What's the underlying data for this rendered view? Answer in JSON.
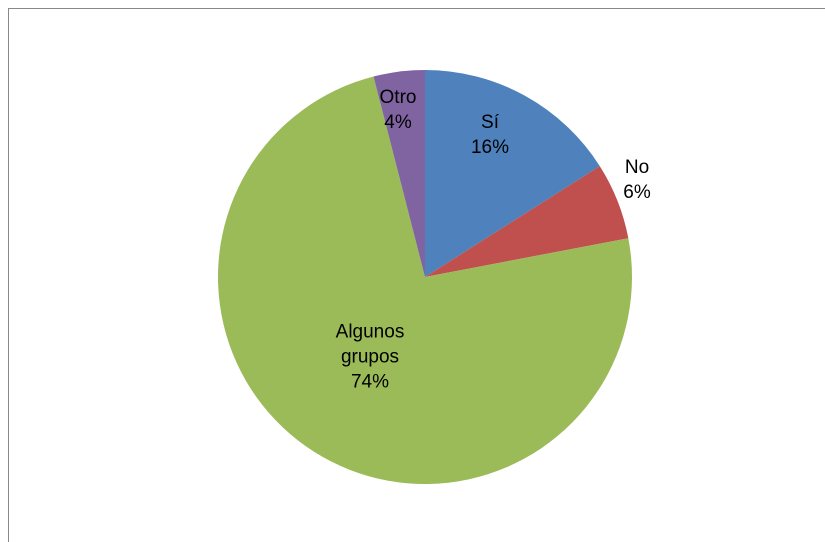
{
  "chart_data": {
    "type": "pie",
    "categories": [
      "Sí",
      "No",
      "Algunos grupos",
      "Otro"
    ],
    "values": [
      16,
      6,
      74,
      4
    ],
    "value_labels": [
      "16%",
      "6%",
      "74%",
      "4%"
    ],
    "colors": [
      "#4f81bd",
      "#c0504d",
      "#9bbb59",
      "#8064a2"
    ]
  }
}
